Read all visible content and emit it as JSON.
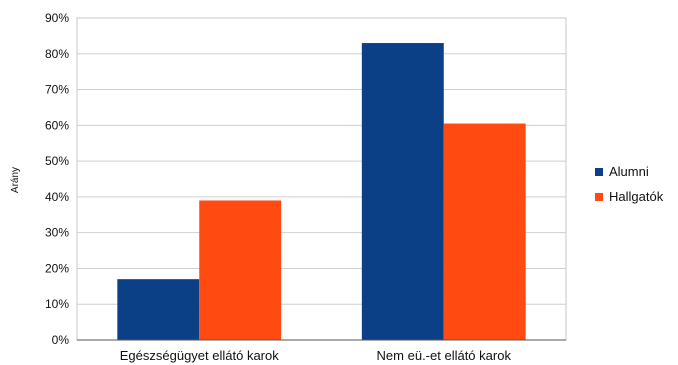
{
  "chart_data": {
    "type": "bar",
    "categories": [
      "Egészségügyet ellátó karok",
      "Nem eü.-et ellátó karok"
    ],
    "series": [
      {
        "name": "Alumni",
        "values": [
          17,
          83
        ],
        "color": "#0b3f86"
      },
      {
        "name": "Hallgatók",
        "values": [
          39,
          60.5
        ],
        "color": "#ff4a12"
      }
    ],
    "ylabel": "Arány",
    "ylim": [
      0,
      90
    ],
    "ytick_step": 10,
    "ytick_suffix": "%",
    "grid": true,
    "legend_position": "right"
  }
}
